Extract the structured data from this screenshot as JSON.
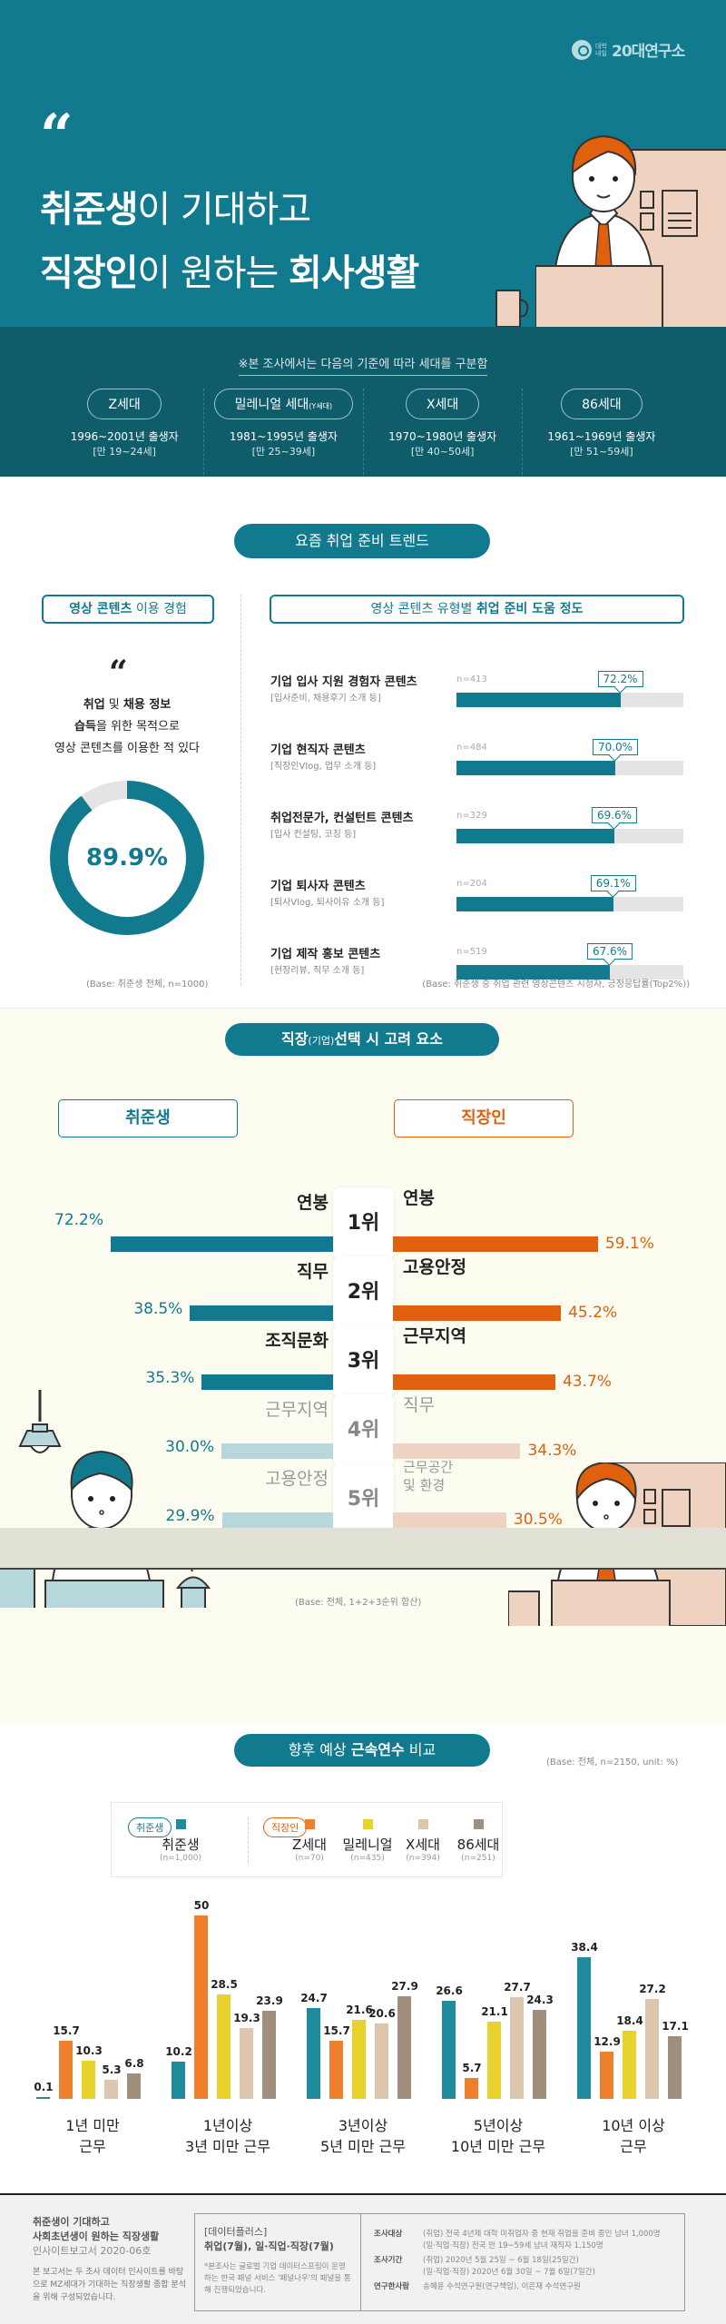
{
  "header": {
    "logo_small": "대학내일",
    "logo_text": "20대연구소",
    "quote_mark": "“",
    "title_line1_bold": "취준생",
    "title_line1_rest": "이 기대하고",
    "title_line2_bold": "직장인",
    "title_line2_mid": "이 원하는 ",
    "title_line2_bold2": "회사생활"
  },
  "generations": {
    "note": "※본 조사에서는 다음의 기준에 따라 세대를 구분함",
    "items": [
      {
        "name": "Z세대",
        "name_small": "",
        "years": "1996~2001년 출생자",
        "age": "[만 19~24세]"
      },
      {
        "name": "밀레니얼 세대",
        "name_small": "(Y세대)",
        "years": "1981~1995년 출생자",
        "age": "[만 25~39세]"
      },
      {
        "name": "X세대",
        "name_small": "",
        "years": "1970~1980년 출생자",
        "age": "[만 40~50세]"
      },
      {
        "name": "86세대",
        "name_small": "",
        "years": "1961~1969년 출생자",
        "age": "[만 51~59세]"
      }
    ]
  },
  "section1": {
    "pill": "요즘 취업 준비 트렌드",
    "left_box_bold": "영상 콘텐츠",
    "left_box_rest": " 이용 경험",
    "right_box_rest": "영상 콘텐츠 유형별 ",
    "right_box_bold": "취업 준비 도움 정도",
    "quote_mark": "“",
    "statement_l1_b1": "취업",
    "statement_l1_m": " 및 ",
    "statement_l1_b2": "채용 정보",
    "statement_l2_b": "습득",
    "statement_l2_rest": "을 위한 목적으로",
    "statement_l3": "영상 콘텐츠를 이용한 적 있다",
    "donut_value": 89.9,
    "donut_label": "89.9%",
    "left_base": "(Base: 취준생 전체, n=1000)",
    "right_base": "(Base: 취준생 중 취업 관련 영상콘텐츠 시청자, 긍정응답률(Top2%))",
    "bars": [
      {
        "label": "기업 입사 지원 경험자 콘텐츠",
        "sub": "[입사준비, 채용후기 소개 등]",
        "n": "n=413",
        "value": 72.2,
        "value_label": "72.2%"
      },
      {
        "label": "기업 현직자 콘텐츠",
        "sub": "[직장인Vlog, 업무 소개 등]",
        "n": "n=484",
        "value": 70.0,
        "value_label": "70.0%"
      },
      {
        "label": "취업전문가, 컨설턴트 콘텐츠",
        "sub": "[입사 컨설팅, 코칭 등]",
        "n": "n=329",
        "value": 69.6,
        "value_label": "69.6%"
      },
      {
        "label": "기업 퇴사자 콘텐츠",
        "sub": "[퇴사Vlog, 퇴사이유 소개 등]",
        "n": "n=204",
        "value": 69.1,
        "value_label": "69.1%"
      },
      {
        "label": "기업 제작 홍보 콘텐츠",
        "sub": "[현장리뷰, 직무 소개 등]",
        "n": "n=519",
        "value": 67.6,
        "value_label": "67.6%"
      }
    ]
  },
  "section2": {
    "pill_bold1": "직장",
    "pill_small": "(기업)",
    "pill_bold2": "선택 시 고려 요소",
    "left_head": "취준생",
    "right_head": "직장인",
    "base": "(Base: 전체, 1+2+3순위 합산)",
    "ranks": [
      {
        "rank": "1위",
        "left_label": "연봉",
        "left_value": 72.2,
        "left_pct": "72.2%",
        "right_label": "연봉",
        "right_value": 59.1,
        "right_pct": "59.1%"
      },
      {
        "rank": "2위",
        "left_label": "직무",
        "left_value": 38.5,
        "left_pct": "38.5%",
        "right_label": "고용안정",
        "right_value": 45.2,
        "right_pct": "45.2%"
      },
      {
        "rank": "3위",
        "left_label": "조직문화",
        "left_value": 35.3,
        "left_pct": "35.3%",
        "right_label": "근무지역",
        "right_value": 43.7,
        "right_pct": "43.7%"
      },
      {
        "rank": "4위",
        "left_label": "근무지역",
        "left_value": 30.0,
        "left_pct": "30.0%",
        "right_label": "직무",
        "right_value": 34.3,
        "right_pct": "34.3%"
      },
      {
        "rank": "5위",
        "left_label": "고용안정",
        "left_value": 29.9,
        "left_pct": "29.9%",
        "right_label": "근무공간\n및 환경",
        "right_value": 30.5,
        "right_pct": "30.5%"
      }
    ],
    "colors": {
      "left_strong": "#127a8e",
      "left_light": "#b7d8db",
      "right_strong": "#e0600e",
      "right_light": "#efd3c2"
    }
  },
  "section3": {
    "pill_rest1": "향후 예상 ",
    "pill_bold": "근속연수",
    "pill_rest2": " 비교",
    "base": "(Base: 전체, n=2150, unit: %)",
    "legend_tag_left": "취준생",
    "legend_tag_right": "직장인"
  },
  "chart_data": [
    {
      "type": "bar",
      "title": "영상 콘텐츠 유형별 취업 준비 도움 정도",
      "orientation": "horizontal",
      "categories": [
        "기업 입사 지원 경험자 콘텐츠",
        "기업 현직자 콘텐츠",
        "취업전문가, 컨설턴트 콘텐츠",
        "기업 퇴사자 콘텐츠",
        "기업 제작 홍보 콘텐츠"
      ],
      "values": [
        72.2,
        70.0,
        69.6,
        69.1,
        67.6
      ],
      "n": [
        413,
        484,
        329,
        204,
        519
      ],
      "unit": "%",
      "xlim": [
        0,
        100
      ]
    },
    {
      "type": "pie",
      "title": "영상 콘텐츠 이용 경험",
      "categories": [
        "이용 경험 있음",
        "기타"
      ],
      "values": [
        89.9,
        10.1
      ],
      "unit": "%"
    },
    {
      "type": "bar",
      "title": "직장(기업) 선택 시 고려 요소",
      "orientation": "diverging",
      "categories": [
        "1위",
        "2위",
        "3위",
        "4위",
        "5위"
      ],
      "series": [
        {
          "name": "취준생",
          "labels": [
            "연봉",
            "직무",
            "조직문화",
            "근무지역",
            "고용안정"
          ],
          "values": [
            72.2,
            38.5,
            35.3,
            30.0,
            29.9
          ]
        },
        {
          "name": "직장인",
          "labels": [
            "연봉",
            "고용안정",
            "근무지역",
            "직무",
            "근무공간 및 환경"
          ],
          "values": [
            59.1,
            45.2,
            43.7,
            34.3,
            30.5
          ]
        }
      ],
      "unit": "%"
    },
    {
      "type": "bar",
      "title": "향후 예상 근속연수 비교",
      "categories": [
        "1년 미만 근무",
        "1년이상 3년 미만 근무",
        "3년이상 5년 미만 근무",
        "5년이상 10년 미만 근무",
        "10년 이상 근무"
      ],
      "series": [
        {
          "name": "취준생",
          "n": "(n=1,000)",
          "color": "#1e8a9c",
          "values": [
            0.1,
            10.2,
            24.7,
            26.6,
            38.4
          ]
        },
        {
          "name": "Z세대",
          "n": "(n=70)",
          "color": "#f07f2d",
          "values": [
            15.7,
            50.0,
            15.7,
            5.7,
            12.9
          ]
        },
        {
          "name": "밀레니얼",
          "n": "(n=435)",
          "color": "#e8d22e",
          "values": [
            10.3,
            28.5,
            21.6,
            21.1,
            18.4
          ]
        },
        {
          "name": "X세대",
          "n": "(n=394)",
          "color": "#dcc7ae",
          "values": [
            5.3,
            19.3,
            20.6,
            27.7,
            27.2
          ]
        },
        {
          "name": "86세대",
          "n": "(n=251)",
          "color": "#a08f7c",
          "values": [
            6.8,
            23.9,
            27.9,
            24.3,
            17.1
          ]
        }
      ],
      "unit": "%",
      "ylim": [
        0,
        50
      ]
    }
  ],
  "footer": {
    "title1": "취준생이 기대하고",
    "title2": "사회초년생이 원하는 직장생활",
    "sub": "인사이트보고서 2020-06호",
    "desc": "본 보고서는 두 조사 데이터 인사이트를 바탕으로 MZ세대가 기대하는 직장생활 종합 분석을 위해 구성되었습니다.",
    "mid_head1": "[데이터플러스]",
    "mid_head2": "취업(7월), 일·직업·직장(7월)",
    "mid_note": "*본조사는 글로벌 기업 데이터스프링이 운영하는 한국 패널 서비스 '패널나우'의 패널을 통해 진행되었습니다.",
    "rows": [
      {
        "k": "조사대상",
        "v": "(취업) 전국 4년제 대학 미취업자 중 현재 취업을 준비 중인 남녀 1,000명"
      },
      {
        "k": "",
        "v": "(일·직업·직장) 전국 만 19~59세 남녀 재직자 1,150명"
      },
      {
        "k": "조사기간",
        "v": "(취업) 2020년 5월 25일 ~ 6월 18일(25일간)"
      },
      {
        "k": "",
        "v": "(일·직업·직장) 2020년 6월 30일 ~ 7월 6일(7일간)"
      },
      {
        "k": "연구한사람",
        "v": "송혜윤 수석연구원(연구책임), 이은재 수석연구원"
      }
    ]
  }
}
